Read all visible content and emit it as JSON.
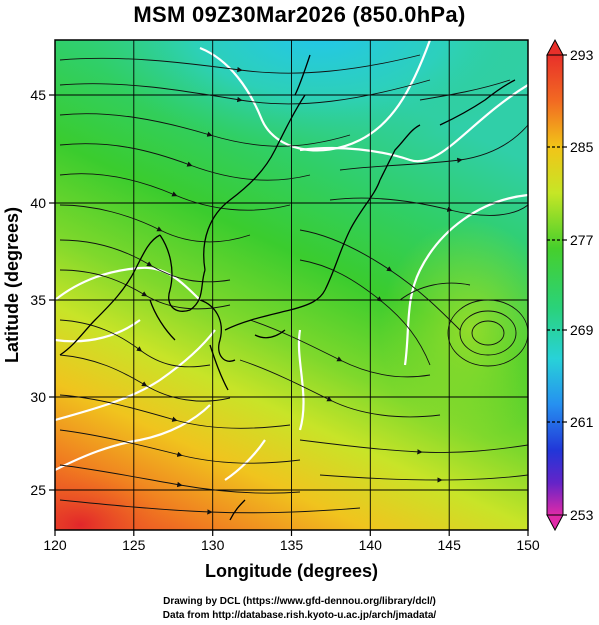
{
  "title": "MSM 09Z30Mar2026 (850.0hPa)",
  "xlabel": "Longitude (degrees)",
  "ylabel": "Latitude  (degrees)",
  "x_ticks": [
    "120",
    "125",
    "130",
    "135",
    "140",
    "145",
    "150"
  ],
  "y_ticks": [
    "25",
    "30",
    "35",
    "40",
    "45"
  ],
  "colorbar": {
    "ticks": [
      "293",
      "285",
      "277",
      "269",
      "261",
      "253"
    ],
    "min": 253,
    "max": 293
  },
  "credits": {
    "line1": "Drawing by DCL (https://www.gfd-dennou.org/library/dcl/)",
    "line2": "Data from http://database.rish.kyoto-u.ac.jp/arch/jmadata/"
  },
  "colors": {
    "warm": "#e8302a",
    "mid": "#3ccc2a",
    "cold": "#28c8e8",
    "contour": "#ffffff",
    "coast": "#000000"
  },
  "chart_data": {
    "type": "heatmap",
    "variable": "temperature (K) with streamlines",
    "xlim": [
      120,
      150
    ],
    "ylim": [
      22.5,
      47.5
    ],
    "clim": [
      253,
      293
    ],
    "features": {
      "cold_region_center": [
        134,
        47
      ],
      "warm_region_center": [
        121,
        23.5
      ],
      "anticyclone_center": [
        147,
        33
      ]
    }
  }
}
